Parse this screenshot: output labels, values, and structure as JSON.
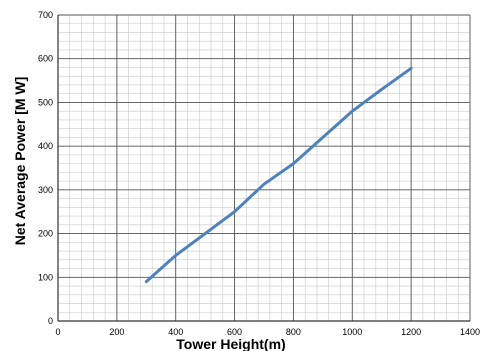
{
  "chart_data": {
    "type": "line",
    "title": "",
    "xlabel": "Tower Height(m)",
    "ylabel": "Net Average Power [M W]",
    "xlim": [
      0,
      1400
    ],
    "ylim": [
      0,
      700
    ],
    "x_major_ticks": [
      0,
      200,
      400,
      600,
      800,
      1000,
      1200,
      1400
    ],
    "y_major_ticks": [
      0,
      100,
      200,
      300,
      400,
      500,
      600,
      700
    ],
    "x_tick_labels": [
      "0",
      "200",
      "400",
      "600",
      "800",
      "1000",
      "1200",
      "1400"
    ],
    "y_tick_labels": [
      "0",
      "100",
      "200",
      "300",
      "400",
      "500",
      "600",
      "700"
    ],
    "x_minor_step": 40,
    "y_minor_step": 20,
    "grid": true,
    "legend": "none",
    "series": [
      {
        "color": "#4f81bd",
        "x": [
          300,
          400,
          500,
          600,
          700,
          800,
          900,
          1000,
          1100,
          1200
        ],
        "y": [
          90,
          150,
          200,
          250,
          313,
          360,
          420,
          480,
          530,
          578
        ]
      }
    ]
  }
}
